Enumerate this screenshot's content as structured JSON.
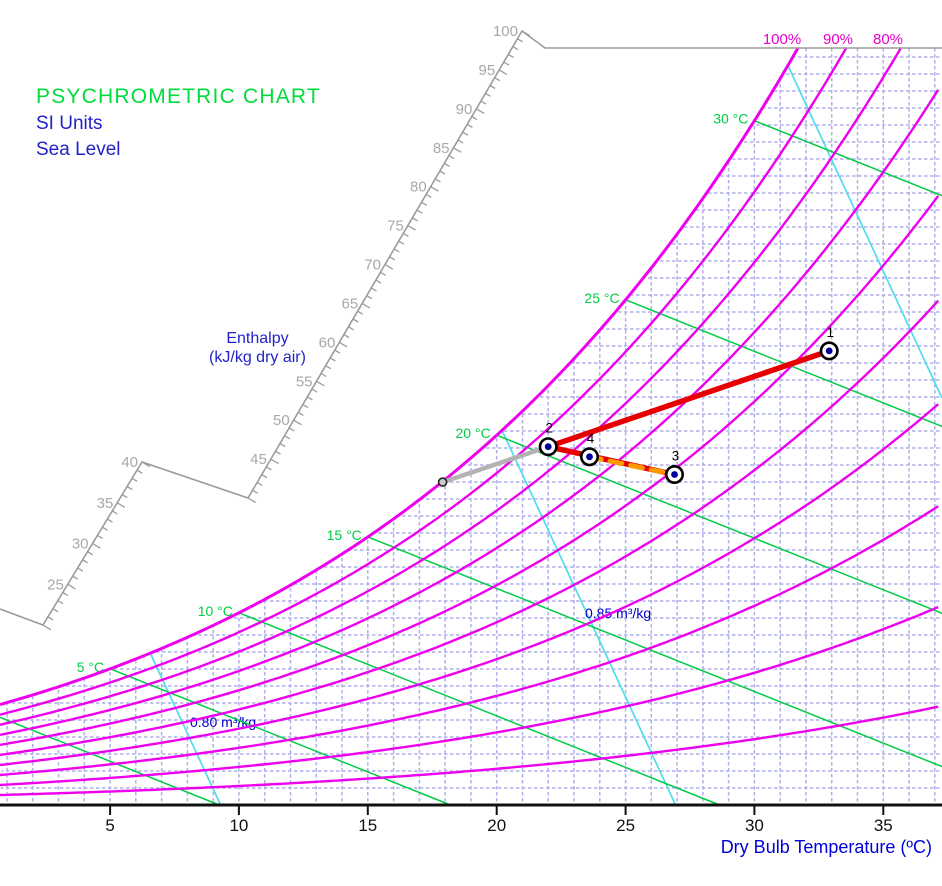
{
  "header": {
    "title": "PSYCHROMETRIC CHART",
    "subtitle_units": "SI Units",
    "subtitle_altitude": "Sea Level"
  },
  "axes": {
    "x": {
      "title": "Dry Bulb Temperature (ºC)",
      "ticks": [
        "5",
        "10",
        "15",
        "20",
        "25",
        "30",
        "35"
      ]
    },
    "enthalpy": {
      "label_line1": "Enthalpy",
      "label_line2": "(kJ/kg dry air)",
      "labels_low": [
        "25",
        "30",
        "35",
        "40"
      ],
      "labels_high": [
        "45",
        "50",
        "55",
        "60",
        "65",
        "70",
        "75",
        "80",
        "85",
        "90",
        "95",
        "100"
      ]
    }
  },
  "labels": {
    "relative_humidity": [
      "100%",
      "90%",
      "80%"
    ],
    "wet_bulb": [
      "30 °C",
      "25 °C",
      "20 °C",
      "15 °C",
      "10 °C",
      "5 °C"
    ],
    "specific_volume": [
      "0.85 m³/kg",
      "0.80 m³/kg"
    ],
    "points": [
      "1",
      "2",
      "3",
      "4"
    ]
  },
  "colors": {
    "title_green": "#00DC3C",
    "text_blue": "#2222CC",
    "axis_title_blue": "#0000DD",
    "sv_label_blue": "#0000CC",
    "magenta": "#EE00EE",
    "rh_label_magenta": "#E800CC",
    "wetbulb_green": "#00CC44",
    "cyan": "#4FDCEE",
    "grid": "#AFAFEC",
    "scale_gray": "#9B9B9B",
    "scale_label_gray": "#A8A8A8",
    "axis_black": "#111111",
    "process_red": "#E60000",
    "process_orange": "#FF9900",
    "process_gray": "#B3B3B3",
    "point_dot_navy": "#000099"
  },
  "chart_data": {
    "type": "psychrometric",
    "title": "PSYCHROMETRIC CHART",
    "units": "SI Units",
    "altitude": "Sea Level",
    "x_axis": {
      "label": "Dry Bulb Temperature (ºC)",
      "min_c": 0.7,
      "max_c": 37.3,
      "ticks_c": [
        5,
        10,
        15,
        20,
        25,
        30,
        35
      ]
    },
    "humidity_axis": {
      "top_of_chart_g_per_kg": 30
    },
    "enthalpy_scale": {
      "label": "Enthalpy (kJ/kg dry air)",
      "min": 20,
      "max": 100,
      "labeled_step": 5
    },
    "rh_curves_percent": [
      10,
      20,
      30,
      40,
      50,
      60,
      70,
      80,
      90,
      100
    ],
    "rh_top_labels_percent": [
      100,
      90,
      80
    ],
    "wet_bulb_lines_c": [
      0,
      5,
      10,
      15,
      20,
      25,
      30
    ],
    "wet_bulb_labeled_c": [
      30,
      25,
      20,
      15,
      10,
      5
    ],
    "specific_volume_lines_m3kg": [
      0.8,
      0.85,
      0.9
    ],
    "specific_volume_labeled_m3kg": [
      0.85,
      0.8
    ],
    "points": [
      {
        "id": "1",
        "label": "1",
        "dry_bulb_c": 32.9,
        "humidity_ratio_g_kg": 18.0
      },
      {
        "id": "2",
        "label": "2",
        "dry_bulb_c": 22.0,
        "humidity_ratio_g_kg": 14.2
      },
      {
        "id": "3",
        "label": "3",
        "dry_bulb_c": 26.9,
        "humidity_ratio_g_kg": 13.1
      },
      {
        "id": "4",
        "label": "4",
        "dry_bulb_c": 23.6,
        "humidity_ratio_g_kg": 13.8
      },
      {
        "id": "start",
        "label": "",
        "dry_bulb_c": 17.9,
        "humidity_ratio_g_kg": 12.8
      }
    ],
    "processes": [
      {
        "from": "start",
        "to": "2",
        "color": "gray",
        "style": "solid"
      },
      {
        "from": "2",
        "to": "3",
        "color": "red",
        "style": "solid"
      },
      {
        "from": "2",
        "to": "1",
        "color": "red",
        "style": "solid"
      },
      {
        "from": "4",
        "to": "3",
        "color": "orange",
        "style": "dashed"
      }
    ]
  }
}
